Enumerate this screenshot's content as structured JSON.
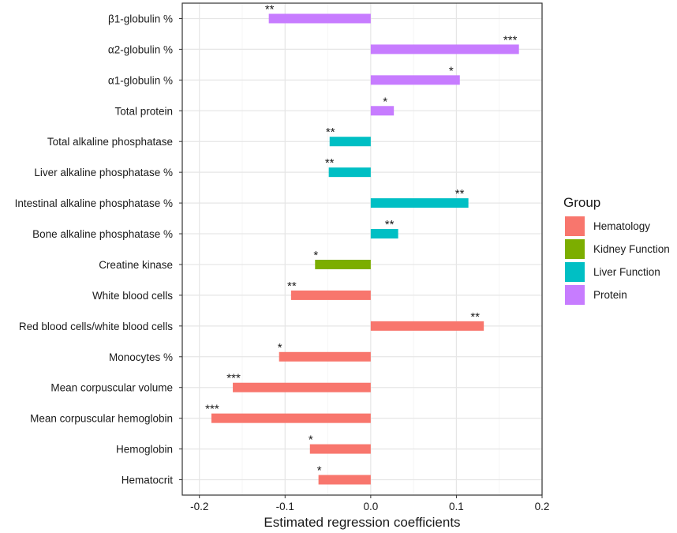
{
  "chart_data": {
    "type": "bar",
    "orientation": "horizontal",
    "xlabel": "Estimated regression coefficients",
    "ylabel": "",
    "xlim": [
      -0.22,
      0.2
    ],
    "xticks": [
      -0.2,
      -0.1,
      0.0,
      0.1,
      0.2
    ],
    "xtick_labels": [
      "-0.2",
      "-0.1",
      "0.0",
      "0.1",
      "0.2"
    ],
    "grid": true,
    "legend_title": "Group",
    "legend_position": "right",
    "groups": [
      {
        "name": "Hematology",
        "color": "#F8766D"
      },
      {
        "name": "Kidney Function",
        "color": "#7CAE00"
      },
      {
        "name": "Liver Function",
        "color": "#00BFC4"
      },
      {
        "name": "Protein",
        "color": "#C77CFF"
      }
    ],
    "bars": [
      {
        "label": "β1-globulin %",
        "value": -0.119,
        "group": "Protein",
        "sig": "**"
      },
      {
        "label": "α2-globulin %",
        "value": 0.173,
        "group": "Protein",
        "sig": "***"
      },
      {
        "label": "α1-globulin %",
        "value": 0.104,
        "group": "Protein",
        "sig": "*"
      },
      {
        "label": "Total protein",
        "value": 0.027,
        "group": "Protein",
        "sig": "*"
      },
      {
        "label": "Total alkaline phosphatase",
        "value": -0.048,
        "group": "Liver Function",
        "sig": "**"
      },
      {
        "label": "Liver alkaline phosphatase %",
        "value": -0.049,
        "group": "Liver Function",
        "sig": "**"
      },
      {
        "label": "Intestinal alkaline phosphatase %",
        "value": 0.114,
        "group": "Liver Function",
        "sig": "**"
      },
      {
        "label": "Bone alkaline phosphatase %",
        "value": 0.032,
        "group": "Liver Function",
        "sig": "**"
      },
      {
        "label": "Creatine kinase",
        "value": -0.065,
        "group": "Kidney Function",
        "sig": "*"
      },
      {
        "label": "White blood cells",
        "value": -0.093,
        "group": "Hematology",
        "sig": "**"
      },
      {
        "label": "Red blood cells/white blood cells",
        "value": 0.132,
        "group": "Hematology",
        "sig": "**"
      },
      {
        "label": "Monocytes %",
        "value": -0.107,
        "group": "Hematology",
        "sig": "*"
      },
      {
        "label": "Mean corpuscular volume",
        "value": -0.161,
        "group": "Hematology",
        "sig": "***"
      },
      {
        "label": "Mean corpuscular hemoglobin",
        "value": -0.186,
        "group": "Hematology",
        "sig": "***"
      },
      {
        "label": "Hemoglobin",
        "value": -0.071,
        "group": "Hematology",
        "sig": "*"
      },
      {
        "label": "Hematocrit",
        "value": -0.061,
        "group": "Hematology",
        "sig": "*"
      }
    ]
  }
}
